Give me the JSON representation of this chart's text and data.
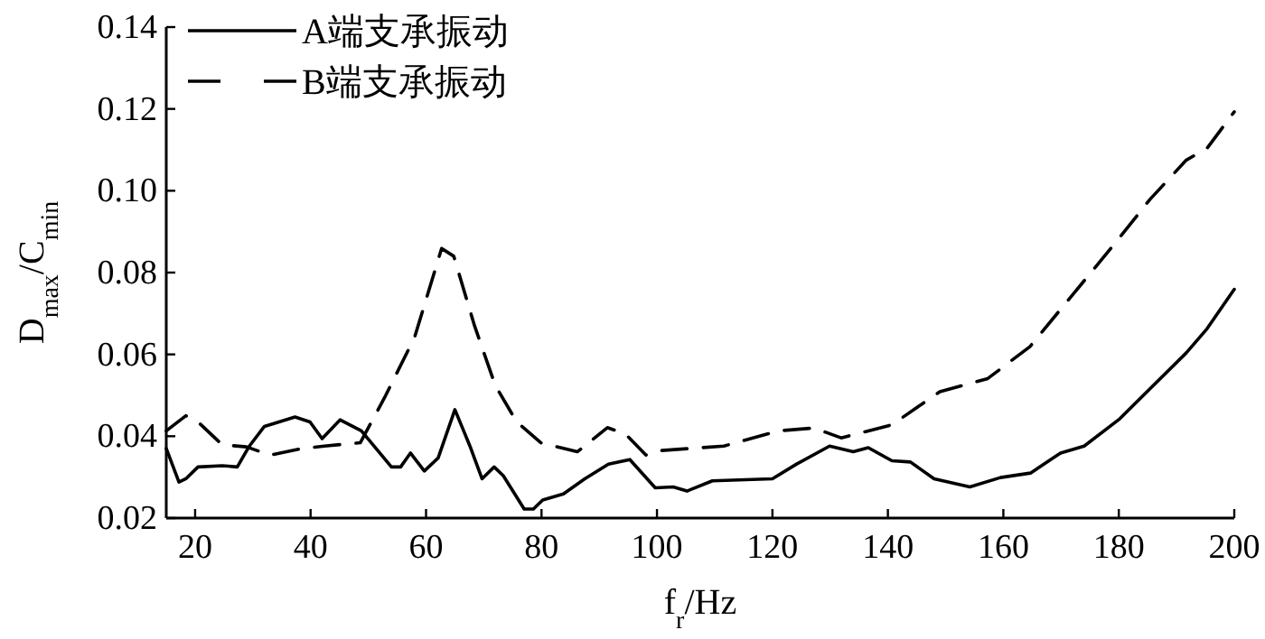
{
  "chart_data": {
    "type": "line",
    "xlabel": "f$_{r}$/Hz",
    "ylabel": "D$_{max}$/C$_{min}$",
    "xlim": [
      15,
      200
    ],
    "xticks": [
      20,
      40,
      60,
      80,
      100,
      120,
      140,
      160,
      180,
      200
    ],
    "ylim": [
      0.02,
      0.14
    ],
    "yticks": [
      {
        "value": 0.02,
        "label": "0.02"
      },
      {
        "value": 0.04,
        "label": "0.04"
      },
      {
        "value": 0.06,
        "label": "0.06"
      },
      {
        "value": 0.08,
        "label": "0.08"
      },
      {
        "value": 0.1,
        "label": "0.10"
      },
      {
        "value": 0.12,
        "label": "0.12"
      },
      {
        "value": 0.14,
        "label": "0.14"
      }
    ],
    "grid": false,
    "legend": "top left",
    "marker": "none",
    "series": [
      {
        "name": "A端支承振动",
        "color": "#000000",
        "line_style": "solid",
        "x": [
          15,
          17.2,
          18.4,
          20.5,
          24.7,
          27.3,
          29.4,
          32,
          37.3,
          39.9,
          42,
          45.1,
          48.8,
          54,
          55.6,
          57.3,
          59.7,
          62.1,
          65,
          67.6,
          69.7,
          71.8,
          73.4,
          77,
          78.6,
          80.2,
          83.8,
          87.5,
          91.6,
          95.3,
          99.7,
          102.8,
          105.2,
          109.6,
          120,
          124.2,
          129.9,
          134,
          136.6,
          140.7,
          143.9,
          148,
          154.2,
          159.5,
          164.7,
          169.9,
          174,
          180.2,
          185.4,
          191.7,
          195.3,
          200
        ],
        "values": [
          0.037,
          0.0288,
          0.0296,
          0.0325,
          0.0328,
          0.0325,
          0.0376,
          0.0424,
          0.0447,
          0.0435,
          0.0394,
          0.044,
          0.0413,
          0.0325,
          0.0325,
          0.0359,
          0.0315,
          0.0347,
          0.0465,
          0.0376,
          0.0296,
          0.0325,
          0.0303,
          0.0222,
          0.0222,
          0.0244,
          0.0259,
          0.0296,
          0.0332,
          0.0343,
          0.0274,
          0.0276,
          0.0266,
          0.0291,
          0.0296,
          0.0332,
          0.0376,
          0.0362,
          0.0372,
          0.034,
          0.0337,
          0.0296,
          0.0276,
          0.0299,
          0.031,
          0.0359,
          0.0376,
          0.0443,
          0.0516,
          0.0604,
          0.0663,
          0.0759
        ]
      },
      {
        "name": "B端支承振动",
        "color": "#000000",
        "line_style": "dashed",
        "x": [
          15,
          18.4,
          20.5,
          24.7,
          28.9,
          33,
          38.2,
          42.4,
          48.6,
          52.8,
          58,
          62.7,
          64.8,
          68.4,
          72,
          75.7,
          79.9,
          86.2,
          91.4,
          94.5,
          98.1,
          100.7,
          111.6,
          121,
          127.2,
          131.9,
          140.7,
          149,
          157.3,
          164.6,
          171.9,
          179.2,
          185.4,
          191.7,
          195.3,
          200
        ],
        "values": [
          0.0413,
          0.045,
          0.0435,
          0.0379,
          0.0374,
          0.0354,
          0.0369,
          0.0376,
          0.0384,
          0.0494,
          0.0641,
          0.0859,
          0.084,
          0.067,
          0.0524,
          0.0435,
          0.0384,
          0.0362,
          0.0421,
          0.0406,
          0.0354,
          0.0365,
          0.0376,
          0.0413,
          0.042,
          0.0396,
          0.0428,
          0.0509,
          0.0541,
          0.0619,
          0.0744,
          0.0869,
          0.0979,
          0.1075,
          0.1104,
          0.1193
        ]
      }
    ]
  }
}
